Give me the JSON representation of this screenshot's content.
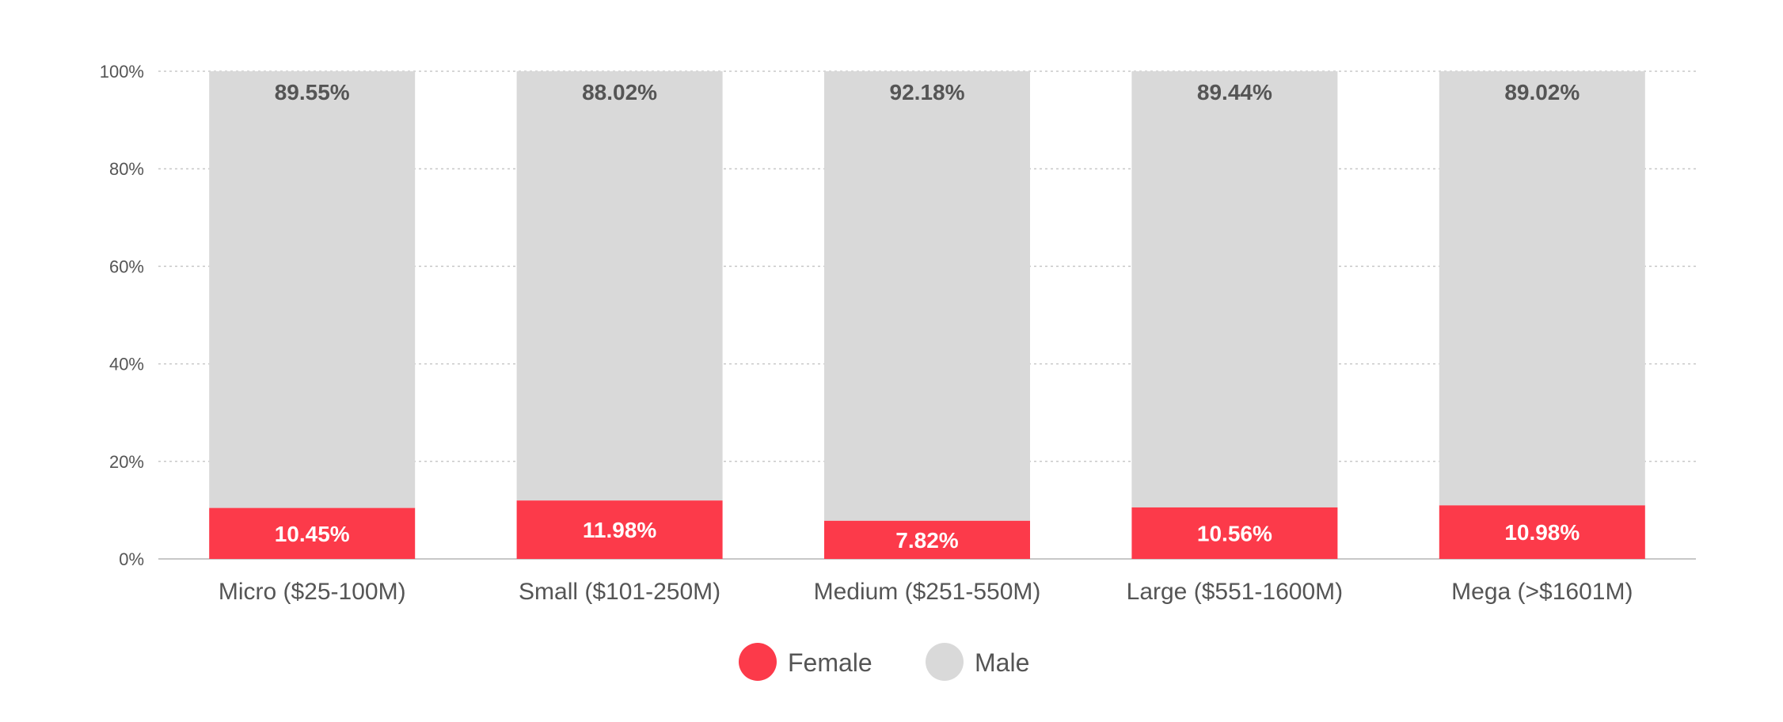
{
  "chart_data": {
    "type": "bar",
    "stacked": true,
    "categories": [
      "Micro ($25-100M)",
      "Small ($101-250M)",
      "Medium ($251-550M)",
      "Large ($551-1600M)",
      "Mega (>$1601M)"
    ],
    "series": [
      {
        "name": "Female",
        "color": "#fc3a4a",
        "values": [
          10.45,
          11.98,
          7.82,
          10.56,
          10.98
        ],
        "labels": [
          "10.45%",
          "11.98%",
          "7.82%",
          "10.56%",
          "10.98%"
        ]
      },
      {
        "name": "Male",
        "color": "#d9d9d9",
        "values": [
          89.55,
          88.02,
          92.18,
          89.44,
          89.02
        ],
        "labels": [
          "89.55%",
          "88.02%",
          "92.18%",
          "89.44%",
          "89.02%"
        ]
      }
    ],
    "yticks": [
      "0%",
      "20%",
      "40%",
      "60%",
      "80%",
      "100%"
    ],
    "ylim": [
      0,
      100
    ],
    "grid": true,
    "legend": "bottom-center"
  }
}
